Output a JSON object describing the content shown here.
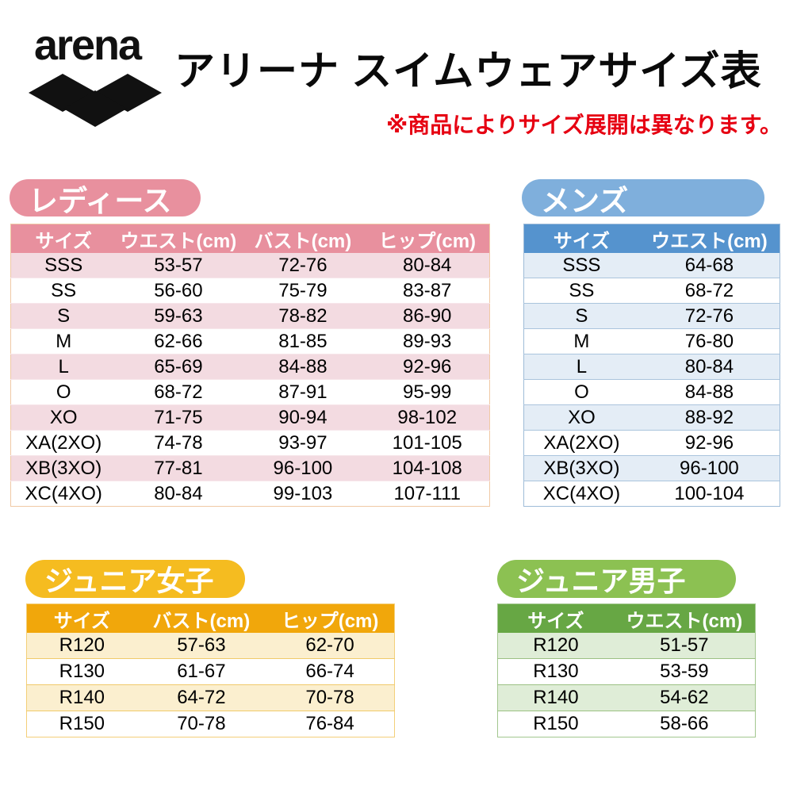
{
  "header": {
    "logo_text": "arena",
    "title": "アリーナ スイムウェアサイズ表",
    "note": "※商品によりサイズ展開は異なります。"
  },
  "colors": {
    "note_red": "#e60012",
    "ladies_accent": "#e8909e",
    "ladies_row": "#f3dbe1",
    "mens_pill": "#7fafdc",
    "mens_header": "#5593ce",
    "mens_row": "#e4edf6",
    "junior_girls_pill": "#f5bc20",
    "junior_girls_header": "#f1a70b",
    "junior_girls_row": "#fbefcf",
    "junior_boys_pill": "#8cc152",
    "junior_boys_header": "#67a744",
    "junior_boys_row": "#dfedd7"
  },
  "sections": {
    "ladies": {
      "label": "レディース",
      "columns": [
        "サイズ",
        "ウエスト(cm)",
        "バスト(cm)",
        "ヒップ(cm)"
      ],
      "rows": [
        [
          "SSS",
          "53-57",
          "72-76",
          "80-84"
        ],
        [
          "SS",
          "56-60",
          "75-79",
          "83-87"
        ],
        [
          "S",
          "59-63",
          "78-82",
          "86-90"
        ],
        [
          "M",
          "62-66",
          "81-85",
          "89-93"
        ],
        [
          "L",
          "65-69",
          "84-88",
          "92-96"
        ],
        [
          "O",
          "68-72",
          "87-91",
          "95-99"
        ],
        [
          "XO",
          "71-75",
          "90-94",
          "98-102"
        ],
        [
          "XA(2XO)",
          "74-78",
          "93-97",
          "101-105"
        ],
        [
          "XB(3XO)",
          "77-81",
          "96-100",
          "104-108"
        ],
        [
          "XC(4XO)",
          "80-84",
          "99-103",
          "107-111"
        ]
      ]
    },
    "mens": {
      "label": "メンズ",
      "columns": [
        "サイズ",
        "ウエスト(cm)"
      ],
      "rows": [
        [
          "SSS",
          "64-68"
        ],
        [
          "SS",
          "68-72"
        ],
        [
          "S",
          "72-76"
        ],
        [
          "M",
          "76-80"
        ],
        [
          "L",
          "80-84"
        ],
        [
          "O",
          "84-88"
        ],
        [
          "XO",
          "88-92"
        ],
        [
          "XA(2XO)",
          "92-96"
        ],
        [
          "XB(3XO)",
          "96-100"
        ],
        [
          "XC(4XO)",
          "100-104"
        ]
      ]
    },
    "junior_girls": {
      "label": "ジュニア女子",
      "columns": [
        "サイズ",
        "バスト(cm)",
        "ヒップ(cm)"
      ],
      "rows": [
        [
          "R120",
          "57-63",
          "62-70"
        ],
        [
          "R130",
          "61-67",
          "66-74"
        ],
        [
          "R140",
          "64-72",
          "70-78"
        ],
        [
          "R150",
          "70-78",
          "76-84"
        ]
      ]
    },
    "junior_boys": {
      "label": "ジュニア男子",
      "columns": [
        "サイズ",
        "ウエスト(cm)"
      ],
      "rows": [
        [
          "R120",
          "51-57"
        ],
        [
          "R130",
          "53-59"
        ],
        [
          "R140",
          "54-62"
        ],
        [
          "R150",
          "58-66"
        ]
      ]
    }
  }
}
